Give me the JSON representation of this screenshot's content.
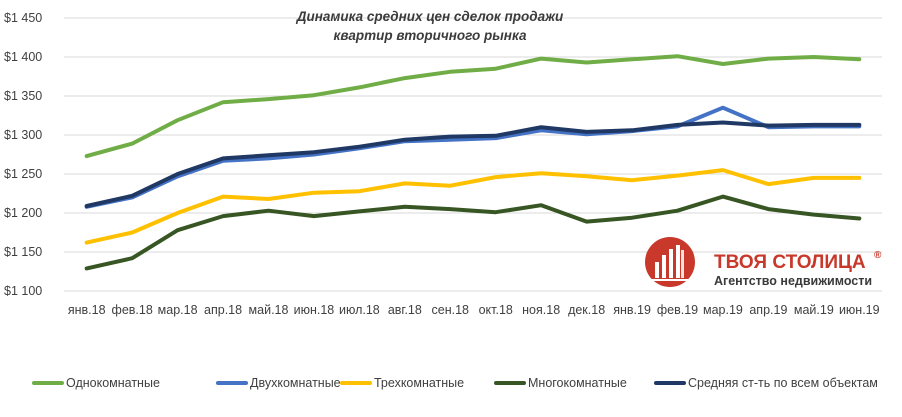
{
  "chart_data": {
    "type": "line",
    "title": "Динамика средних цен сделок продажи",
    "title_line2": "квартир вторичного рынка",
    "xlabel": "",
    "ylabel": "",
    "categories": [
      "янв.18",
      "фев.18",
      "мар.18",
      "апр.18",
      "май.18",
      "июн.18",
      "июл.18",
      "авг.18",
      "сен.18",
      "окт.18",
      "ноя.18",
      "дек.18",
      "янв.19",
      "фев.19",
      "мар.19",
      "апр.19",
      "май.19",
      "июн.19"
    ],
    "ylim": [
      1100,
      1450
    ],
    "yticks": [
      1100,
      1150,
      1200,
      1250,
      1300,
      1350,
      1400,
      1450
    ],
    "ytick_labels": [
      "$1 100",
      "$1 150",
      "$1 200",
      "$1 250",
      "$1 300",
      "$1 350",
      "$1 400",
      "$1 450"
    ],
    "grid": true,
    "legend_position": "bottom",
    "series": [
      {
        "name": "Однокомнатные",
        "color": "#70ad47",
        "values": [
          1273,
          1289,
          1319,
          1342,
          1346,
          1351,
          1361,
          1373,
          1381,
          1385,
          1398,
          1393,
          1397,
          1401,
          1391,
          1398,
          1400,
          1397
        ]
      },
      {
        "name": "Двухкомнатные",
        "color": "#4472c4",
        "values": [
          1208,
          1220,
          1247,
          1267,
          1270,
          1275,
          1283,
          1292,
          1294,
          1296,
          1306,
          1301,
          1305,
          1311,
          1335,
          1310,
          1311,
          1311
        ]
      },
      {
        "name": "Трехкомнатные",
        "color": "#ffc000",
        "values": [
          1162,
          1175,
          1200,
          1221,
          1218,
          1226,
          1228,
          1238,
          1235,
          1246,
          1251,
          1247,
          1242,
          1248,
          1255,
          1237,
          1245,
          1245
        ]
      },
      {
        "name": "Многокомнатные",
        "color": "#375623",
        "values": [
          1129,
          1142,
          1178,
          1196,
          1203,
          1196,
          1202,
          1208,
          1205,
          1201,
          1210,
          1189,
          1194,
          1203,
          1221,
          1205,
          1198,
          1193
        ]
      },
      {
        "name": "Средняя ст-ть по всем объектам",
        "color": "#203864",
        "values": [
          1209,
          1222,
          1250,
          1270,
          1274,
          1278,
          1285,
          1294,
          1298,
          1299,
          1310,
          1304,
          1306,
          1313,
          1316,
          1312,
          1313,
          1313
        ]
      }
    ]
  },
  "brand": {
    "name": "ТВОЯ СТОЛИЦА",
    "registered": "®",
    "subtitle": "Агентство недвижимости",
    "color": "#c8382b"
  }
}
